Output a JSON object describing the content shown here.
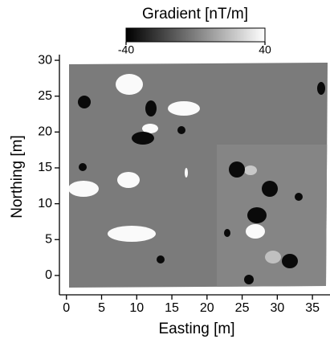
{
  "chart_data": {
    "type": "heatmap",
    "colorbar_label": "Gradient [nT/m]",
    "colormap": [
      "#000000",
      "#ffffff"
    ],
    "clim": [
      -40,
      40
    ],
    "cticks": [
      -40,
      40
    ],
    "xlabel": "Easting [m]",
    "ylabel": "Northing [m]",
    "xlim": [
      -1,
      37.5
    ],
    "ylim": [
      -2.7,
      30.5
    ],
    "xticks": [
      0,
      5,
      10,
      15,
      20,
      25,
      30,
      35
    ],
    "yticks": [
      0,
      5,
      10,
      15,
      20,
      25,
      30
    ]
  }
}
